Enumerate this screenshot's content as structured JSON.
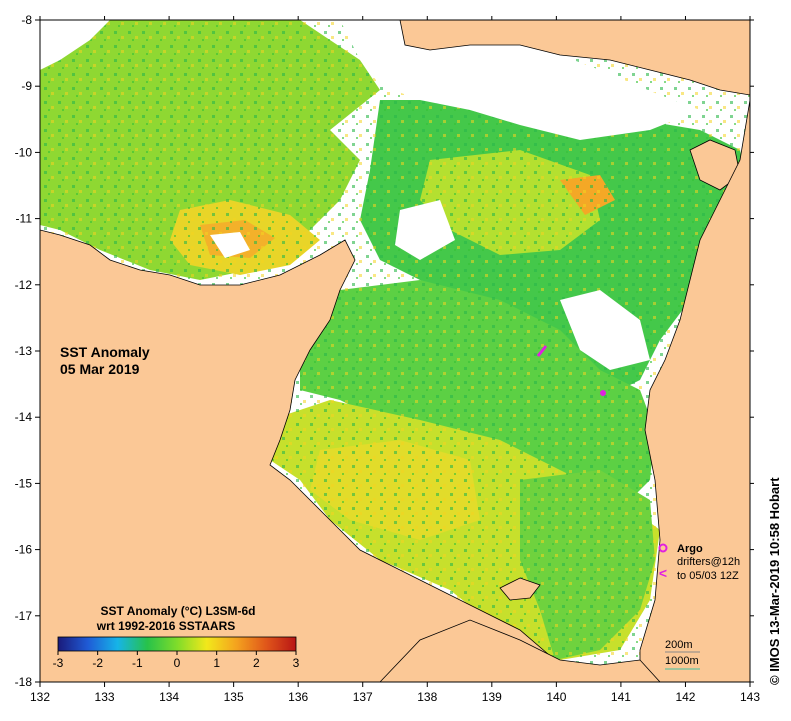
{
  "title": {
    "line1": "SST Anomaly",
    "line2": "05 Mar 2019"
  },
  "colorbar": {
    "title_line1": "SST Anomaly (°C) L3SM-6d",
    "title_line2": "wrt 1992-2016 SSTAARS",
    "ticks": [
      "-3",
      "-2",
      "-1",
      "0",
      "1",
      "2",
      "3"
    ],
    "values": [
      -3,
      -2,
      -1,
      0,
      1,
      2,
      3
    ],
    "colors": [
      "#1a1a7a",
      "#1f5bd6",
      "#16b4e8",
      "#27c24a",
      "#7fdc2a",
      "#f2e81b",
      "#f4a21e",
      "#e0561a",
      "#b81515"
    ]
  },
  "axes": {
    "x_ticks": [
      "132",
      "133",
      "134",
      "135",
      "136",
      "137",
      "138",
      "139",
      "140",
      "141",
      "142",
      "143"
    ],
    "x_values": [
      132,
      133,
      134,
      135,
      136,
      137,
      138,
      139,
      140,
      141,
      142,
      143
    ],
    "y_ticks": [
      "-8",
      "-9",
      "-10",
      "-11",
      "-12",
      "-13",
      "-14",
      "-15",
      "-16",
      "-17",
      "-18"
    ],
    "y_values": [
      -8,
      -9,
      -10,
      -11,
      -12,
      -13,
      -14,
      -15,
      -16,
      -17,
      -18
    ],
    "xlim": [
      132,
      143
    ],
    "ylim": [
      -18,
      -8
    ]
  },
  "legend": {
    "argo_label": "Argo",
    "drifters_line1": "drifters@12h",
    "drifters_line2": "to 05/03 12Z",
    "depth_200": "200m",
    "depth_1000": "1000m",
    "argo_color": "#e020e0",
    "drifter_color": "#e020e0",
    "depth_200_color": "#888888",
    "depth_1000_color": "#40c0a0"
  },
  "copyright": "© IMOS 13-Mar-2019 10:58 Hobart",
  "colors": {
    "land": "#fbc896",
    "ocean_nodata": "#ffffff"
  }
}
